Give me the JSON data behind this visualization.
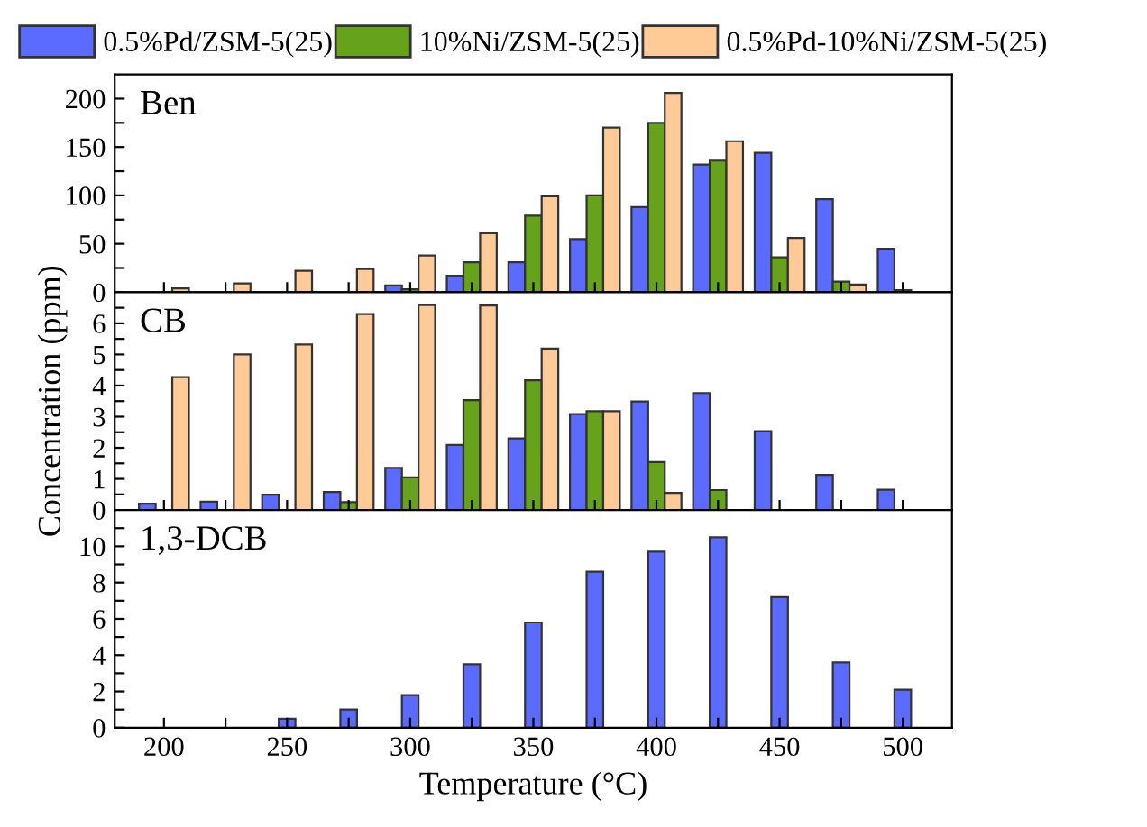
{
  "chart_data": [
    {
      "type": "bar",
      "annotations": [
        "Ben"
      ],
      "x": [
        200,
        225,
        250,
        275,
        300,
        325,
        350,
        375,
        400,
        425,
        450,
        475,
        500
      ],
      "legend": "top",
      "tick_labels": "y",
      "xlim": [
        180,
        520
      ],
      "ylim": [
        0,
        225
      ],
      "yticks": [
        0,
        {
          "value": 25,
          "label": null
        },
        50,
        {
          "value": 75,
          "label": null
        },
        100,
        {
          "value": 125,
          "label": null
        },
        150,
        {
          "value": 175,
          "label": null
        },
        200
      ],
      "xticks": [
        200,
        {
          "value": 225,
          "label": null
        },
        250,
        {
          "value": 275,
          "label": null
        },
        300,
        {
          "value": 325,
          "label": null
        },
        350,
        {
          "value": 375,
          "label": null
        },
        400,
        {
          "value": 425,
          "label": null
        },
        450,
        {
          "value": 475,
          "label": null
        },
        500
      ],
      "series": [
        {
          "name": "0.5%Pd/ZSM-5(25)",
          "color": "#5b6bff",
          "values": [
            null,
            null,
            null,
            null,
            7,
            17,
            31,
            55,
            88,
            132,
            144,
            96,
            45
          ]
        },
        {
          "name": "10%Ni/ZSM-5(25)",
          "color": "#66a31a",
          "values": [
            null,
            null,
            null,
            null,
            3,
            31,
            79,
            100,
            175,
            136,
            36,
            11,
            2
          ]
        },
        {
          "name": "0.5%Pd-10%Ni/ZSM-5(25)",
          "color": "#fdca98",
          "values": [
            4,
            9,
            22,
            24,
            38,
            61,
            99,
            170,
            206,
            156,
            56,
            8,
            null
          ]
        }
      ]
    },
    {
      "type": "bar",
      "annotations": [
        "CB"
      ],
      "ylabel": "Concentration (ppm)",
      "x": [
        200,
        225,
        250,
        275,
        300,
        325,
        350,
        375,
        400,
        425,
        450,
        475,
        500
      ],
      "tick_labels": "y",
      "xlim": [
        180,
        520
      ],
      "ylim": [
        0,
        7
      ],
      "yticks": [
        0,
        {
          "value": 0.5,
          "label": null
        },
        1,
        {
          "value": 1.5,
          "label": null
        },
        2,
        {
          "value": 2.5,
          "label": null
        },
        3,
        {
          "value": 3.5,
          "label": null
        },
        4,
        {
          "value": 4.5,
          "label": null
        },
        5,
        {
          "value": 5.5,
          "label": null
        },
        6,
        {
          "value": 6.5,
          "label": null
        }
      ],
      "xticks": [
        200,
        {
          "value": 225,
          "label": null
        },
        250,
        {
          "value": 275,
          "label": null
        },
        300,
        {
          "value": 325,
          "label": null
        },
        350,
        {
          "value": 375,
          "label": null
        },
        400,
        {
          "value": 425,
          "label": null
        },
        450,
        {
          "value": 475,
          "label": null
        },
        500
      ],
      "series": [
        {
          "color": "#5b6bff",
          "values": [
            0.2,
            0.27,
            0.49,
            0.58,
            1.35,
            2.09,
            2.3,
            3.08,
            3.49,
            3.76,
            2.53,
            1.13,
            0.65
          ]
        },
        {
          "color": "#66a31a",
          "values": [
            null,
            null,
            null,
            0.25,
            1.05,
            3.53,
            4.17,
            3.18,
            1.54,
            0.64,
            null,
            null,
            null
          ]
        },
        {
          "color": "#fdca98",
          "values": [
            4.27,
            5.0,
            5.32,
            6.3,
            6.59,
            6.57,
            5.19,
            3.18,
            0.55,
            null,
            null,
            null,
            null
          ]
        }
      ]
    },
    {
      "type": "bar",
      "annotations": [
        "1,3-DCB"
      ],
      "xlabel": "Temperature (°C)",
      "x": [
        250,
        275,
        300,
        325,
        350,
        375,
        400,
        425,
        450,
        475,
        500
      ],
      "xlim": [
        180,
        520
      ],
      "ylim": [
        0,
        12
      ],
      "yticks": [
        0,
        {
          "value": 1,
          "label": null
        },
        2,
        {
          "value": 3,
          "label": null
        },
        4,
        {
          "value": 5,
          "label": null
        },
        6,
        {
          "value": 7,
          "label": null
        },
        8,
        {
          "value": 9,
          "label": null
        },
        10,
        {
          "value": 11,
          "label": null
        }
      ],
      "xticks": [
        200,
        {
          "value": 225,
          "label": null
        },
        250,
        {
          "value": 275,
          "label": null
        },
        300,
        {
          "value": 325,
          "label": null
        },
        350,
        {
          "value": 375,
          "label": null
        },
        400,
        {
          "value": 425,
          "label": null
        },
        450,
        {
          "value": 475,
          "label": null
        },
        500
      ],
      "series": [
        {
          "color": "#5b6bff",
          "values": [
            0.5,
            1.0,
            1.8,
            3.5,
            5.8,
            8.6,
            9.7,
            10.5,
            7.2,
            3.6,
            2.1
          ]
        }
      ]
    }
  ]
}
